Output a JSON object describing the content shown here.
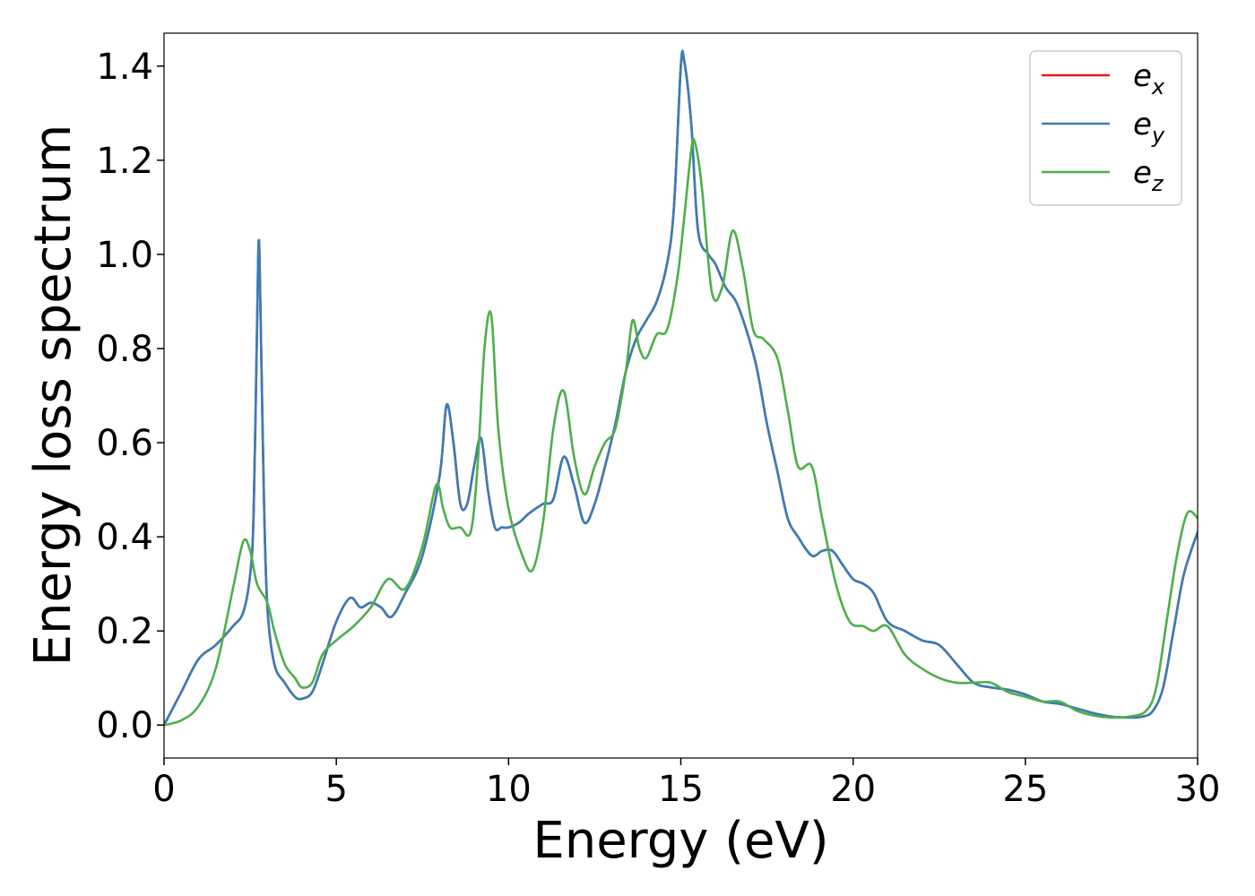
{
  "chart_data": {
    "type": "line",
    "title": "",
    "xlabel": "Energy (eV)",
    "ylabel": "Energy loss spectrum",
    "xlim": [
      0,
      30
    ],
    "ylim": [
      -0.07,
      1.47
    ],
    "xticks": [
      0,
      5,
      10,
      15,
      20,
      25,
      30
    ],
    "xtick_labels": [
      "0",
      "5",
      "10",
      "15",
      "20",
      "25",
      "30"
    ],
    "yticks": [
      0.0,
      0.2,
      0.4,
      0.6,
      0.8,
      1.0,
      1.2,
      1.4
    ],
    "ytick_labels": [
      "0.0",
      "0.2",
      "0.4",
      "0.6",
      "0.8",
      "1.0",
      "1.2",
      "1.4"
    ],
    "grid": false,
    "legend_position": "top-right",
    "series": [
      {
        "name": "e_x",
        "legend_base": "e",
        "legend_sub": "x",
        "color": "#e41a1c",
        "x": [
          0,
          0.5,
          1,
          1.5,
          2,
          2.3,
          2.5,
          2.6,
          2.7,
          2.75,
          2.8,
          2.9,
          3.0,
          3.2,
          3.5,
          3.8,
          4.0,
          4.3,
          4.6,
          5.0,
          5.4,
          5.7,
          6.0,
          6.3,
          6.6,
          7.0,
          7.5,
          8.0,
          8.2,
          8.4,
          8.6,
          8.8,
          9.0,
          9.2,
          9.4,
          9.6,
          9.8,
          10.0,
          10.3,
          10.6,
          11.0,
          11.3,
          11.6,
          11.9,
          12.2,
          12.5,
          12.8,
          13.1,
          13.4,
          13.7,
          14.0,
          14.3,
          14.6,
          14.8,
          15.0,
          15.1,
          15.3,
          15.5,
          15.8,
          16.0,
          16.3,
          16.6,
          16.9,
          17.2,
          17.5,
          17.8,
          18.1,
          18.4,
          18.8,
          19.1,
          19.4,
          19.7,
          20.0,
          20.3,
          20.6,
          21.0,
          21.5,
          22.0,
          22.5,
          23.0,
          23.5,
          24.0,
          24.5,
          25.0,
          25.5,
          26.0,
          26.5,
          27.0,
          27.5,
          28.0,
          28.4,
          28.7,
          29.0,
          29.3,
          29.6,
          30.0
        ],
        "y": [
          0.0,
          0.07,
          0.14,
          0.17,
          0.21,
          0.24,
          0.32,
          0.45,
          0.85,
          1.03,
          0.88,
          0.48,
          0.25,
          0.13,
          0.09,
          0.06,
          0.056,
          0.07,
          0.13,
          0.22,
          0.27,
          0.25,
          0.26,
          0.25,
          0.23,
          0.28,
          0.36,
          0.53,
          0.68,
          0.6,
          0.47,
          0.47,
          0.55,
          0.61,
          0.5,
          0.42,
          0.42,
          0.42,
          0.43,
          0.45,
          0.47,
          0.48,
          0.57,
          0.51,
          0.43,
          0.47,
          0.55,
          0.64,
          0.75,
          0.82,
          0.86,
          0.9,
          0.98,
          1.1,
          1.4,
          1.41,
          1.28,
          1.05,
          1.0,
          0.98,
          0.93,
          0.9,
          0.84,
          0.76,
          0.64,
          0.54,
          0.44,
          0.4,
          0.36,
          0.37,
          0.37,
          0.34,
          0.31,
          0.3,
          0.28,
          0.22,
          0.2,
          0.18,
          0.17,
          0.13,
          0.09,
          0.08,
          0.075,
          0.065,
          0.05,
          0.045,
          0.035,
          0.025,
          0.018,
          0.016,
          0.018,
          0.03,
          0.08,
          0.2,
          0.32,
          0.41
        ]
      },
      {
        "name": "e_y",
        "legend_base": "e",
        "legend_sub": "y",
        "color": "#377eb8",
        "x": [
          0,
          0.5,
          1,
          1.5,
          2,
          2.3,
          2.5,
          2.6,
          2.7,
          2.75,
          2.8,
          2.9,
          3.0,
          3.2,
          3.5,
          3.8,
          4.0,
          4.3,
          4.6,
          5.0,
          5.4,
          5.7,
          6.0,
          6.3,
          6.6,
          7.0,
          7.5,
          8.0,
          8.2,
          8.4,
          8.6,
          8.8,
          9.0,
          9.2,
          9.4,
          9.6,
          9.8,
          10.0,
          10.3,
          10.6,
          11.0,
          11.3,
          11.6,
          11.9,
          12.2,
          12.5,
          12.8,
          13.1,
          13.4,
          13.7,
          14.0,
          14.3,
          14.6,
          14.8,
          15.0,
          15.1,
          15.3,
          15.5,
          15.8,
          16.0,
          16.3,
          16.6,
          16.9,
          17.2,
          17.5,
          17.8,
          18.1,
          18.4,
          18.8,
          19.1,
          19.4,
          19.7,
          20.0,
          20.3,
          20.6,
          21.0,
          21.5,
          22.0,
          22.5,
          23.0,
          23.5,
          24.0,
          24.5,
          25.0,
          25.5,
          26.0,
          26.5,
          27.0,
          27.5,
          28.0,
          28.4,
          28.7,
          29.0,
          29.3,
          29.6,
          30.0
        ],
        "y": [
          0.0,
          0.07,
          0.14,
          0.17,
          0.21,
          0.24,
          0.32,
          0.45,
          0.85,
          1.03,
          0.88,
          0.48,
          0.25,
          0.13,
          0.09,
          0.06,
          0.056,
          0.07,
          0.13,
          0.22,
          0.27,
          0.25,
          0.26,
          0.25,
          0.23,
          0.28,
          0.36,
          0.53,
          0.68,
          0.6,
          0.47,
          0.47,
          0.55,
          0.61,
          0.5,
          0.42,
          0.42,
          0.42,
          0.43,
          0.45,
          0.47,
          0.48,
          0.57,
          0.51,
          0.43,
          0.47,
          0.55,
          0.64,
          0.75,
          0.82,
          0.86,
          0.9,
          0.98,
          1.1,
          1.4,
          1.41,
          1.28,
          1.05,
          1.0,
          0.98,
          0.93,
          0.9,
          0.84,
          0.76,
          0.64,
          0.54,
          0.44,
          0.4,
          0.36,
          0.37,
          0.37,
          0.34,
          0.31,
          0.3,
          0.28,
          0.22,
          0.2,
          0.18,
          0.17,
          0.13,
          0.09,
          0.08,
          0.075,
          0.065,
          0.05,
          0.045,
          0.035,
          0.025,
          0.018,
          0.016,
          0.018,
          0.03,
          0.08,
          0.2,
          0.32,
          0.41
        ]
      },
      {
        "name": "e_z",
        "legend_base": "e",
        "legend_sub": "z",
        "color": "#4daf4a",
        "x": [
          0,
          0.5,
          1,
          1.5,
          2,
          2.3,
          2.5,
          2.7,
          3.0,
          3.2,
          3.5,
          3.8,
          4.0,
          4.3,
          4.6,
          5.0,
          5.5,
          6.0,
          6.5,
          7.0,
          7.5,
          7.9,
          8.1,
          8.3,
          8.6,
          8.9,
          9.1,
          9.3,
          9.5,
          9.7,
          10.0,
          10.4,
          10.7,
          11.0,
          11.3,
          11.6,
          11.9,
          12.2,
          12.5,
          12.8,
          13.1,
          13.4,
          13.6,
          13.8,
          14.0,
          14.3,
          14.6,
          14.9,
          15.1,
          15.3,
          15.4,
          15.6,
          15.9,
          16.2,
          16.5,
          16.8,
          17.1,
          17.4,
          17.8,
          18.1,
          18.4,
          18.8,
          19.1,
          19.5,
          19.9,
          20.3,
          20.6,
          21.0,
          21.5,
          22.0,
          22.5,
          23.0,
          23.5,
          24.0,
          24.5,
          25.0,
          25.5,
          26.0,
          26.5,
          27.0,
          27.5,
          28.0,
          28.5,
          28.8,
          29.1,
          29.4,
          29.7,
          30.0
        ],
        "y": [
          0.0,
          0.01,
          0.04,
          0.12,
          0.29,
          0.39,
          0.37,
          0.3,
          0.26,
          0.2,
          0.13,
          0.1,
          0.08,
          0.09,
          0.15,
          0.18,
          0.21,
          0.25,
          0.31,
          0.29,
          0.38,
          0.51,
          0.46,
          0.42,
          0.42,
          0.41,
          0.55,
          0.8,
          0.87,
          0.63,
          0.46,
          0.36,
          0.33,
          0.43,
          0.63,
          0.71,
          0.57,
          0.49,
          0.55,
          0.6,
          0.63,
          0.75,
          0.86,
          0.8,
          0.78,
          0.83,
          0.84,
          0.95,
          1.08,
          1.22,
          1.24,
          1.15,
          0.92,
          0.93,
          1.05,
          0.97,
          0.84,
          0.82,
          0.78,
          0.67,
          0.55,
          0.55,
          0.44,
          0.3,
          0.22,
          0.21,
          0.2,
          0.21,
          0.15,
          0.12,
          0.1,
          0.09,
          0.09,
          0.09,
          0.07,
          0.06,
          0.05,
          0.05,
          0.03,
          0.02,
          0.016,
          0.018,
          0.03,
          0.08,
          0.22,
          0.36,
          0.45,
          0.44
        ]
      }
    ]
  }
}
